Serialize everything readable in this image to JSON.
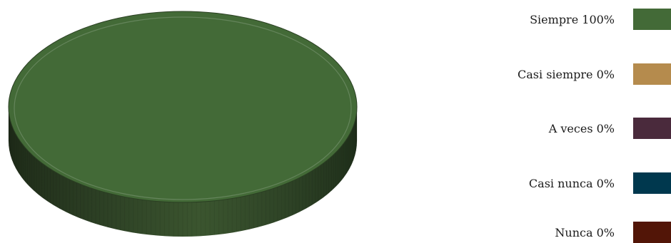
{
  "chart_data": {
    "type": "pie",
    "categories": [
      "Siempre",
      "Casi siempre",
      "A veces",
      "Casi nunca",
      "Nunca"
    ],
    "values": [
      100,
      0,
      0,
      0,
      0
    ],
    "labels": [
      "Siempre 100%",
      "Casi siempre 0%",
      "A veces 0%",
      "Casi nunca 0%",
      "Nunca 0%"
    ],
    "colors": [
      "#436a37",
      "#b58b4d",
      "#4a2a3c",
      "#00384e",
      "#521507"
    ],
    "legend": "right",
    "style": "3d"
  }
}
